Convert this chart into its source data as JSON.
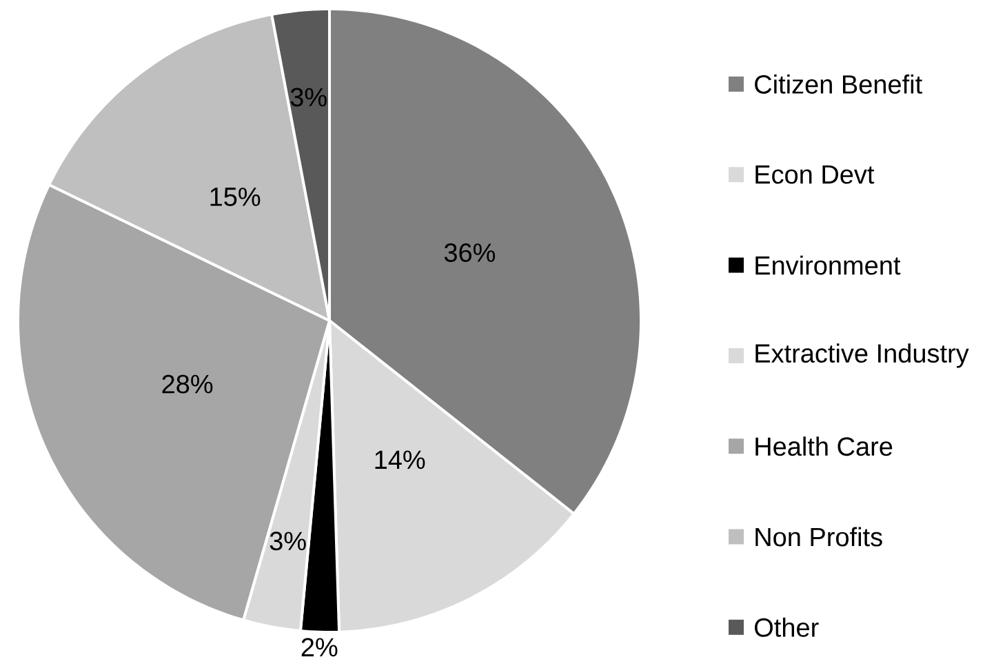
{
  "chart_data": {
    "type": "pie",
    "categories": [
      "Citizen Benefit",
      "Econ Devt",
      "Environment",
      "Extractive Industry",
      "Health Care",
      "Non Profits",
      "Other"
    ],
    "values": [
      36,
      14,
      2,
      3,
      28,
      15,
      3
    ],
    "value_labels": [
      "36%",
      "14%",
      "2%",
      "3%",
      "28%",
      "15%",
      "3%"
    ],
    "colors": [
      "#808080",
      "#d9d9d9",
      "#000000",
      "#d9d9d9",
      "#a6a6a6",
      "#bfbfbf",
      "#595959"
    ],
    "legend": "right"
  }
}
